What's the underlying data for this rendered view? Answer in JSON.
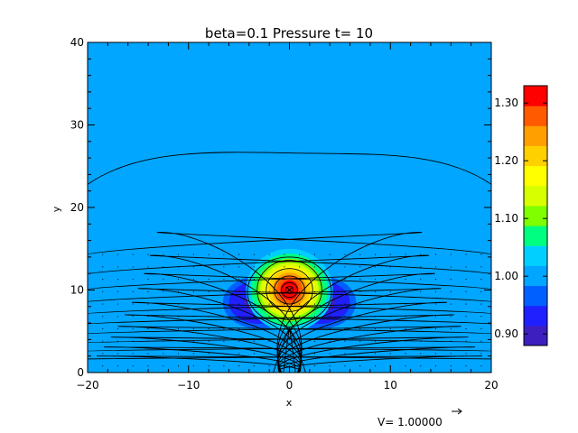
{
  "chart_data": {
    "type": "heatmap",
    "title": "beta=0.1 Pressure t= 10",
    "xlabel": "x",
    "ylabel": "y",
    "xlim": [
      -20,
      20
    ],
    "ylim": [
      0,
      40
    ],
    "x_ticks": [
      -20,
      -10,
      0,
      10,
      20
    ],
    "x_tick_labels": [
      "−20",
      "−10",
      "0",
      "10",
      "20"
    ],
    "y_ticks": [
      0,
      10,
      20,
      30,
      40
    ],
    "y_tick_labels": [
      "0",
      "10",
      "20",
      "30",
      "40"
    ],
    "background_value": 1.0,
    "features": {
      "high_pressure_core": {
        "center": [
          0,
          10
        ],
        "peak": 1.32
      },
      "low_pressure_lobes": [
        {
          "center": [
            -3,
            8.5
          ],
          "min": 0.9
        },
        {
          "center": [
            3,
            8.5
          ],
          "min": 0.9
        }
      ],
      "flux_rope_marker": [
        0,
        10
      ],
      "x_point_marker": [
        0,
        5
      ]
    },
    "colorbar": {
      "min": 0.88,
      "max": 1.33,
      "ticks": [
        1.3,
        1.2,
        1.1,
        1.0,
        0.9
      ],
      "tick_labels": [
        "1.30",
        "1.20",
        "1.10",
        "1.00",
        "0.90"
      ],
      "colors": [
        "#3d1fbf",
        "#2020ff",
        "#0060ff",
        "#00a6ff",
        "#00cfff",
        "#00ff80",
        "#7fff00",
        "#d8ff00",
        "#ffff00",
        "#ffd000",
        "#ff9f00",
        "#ff5a00",
        "#ff0000"
      ]
    },
    "velocity_legend": {
      "label": "V= 1.00000"
    }
  }
}
